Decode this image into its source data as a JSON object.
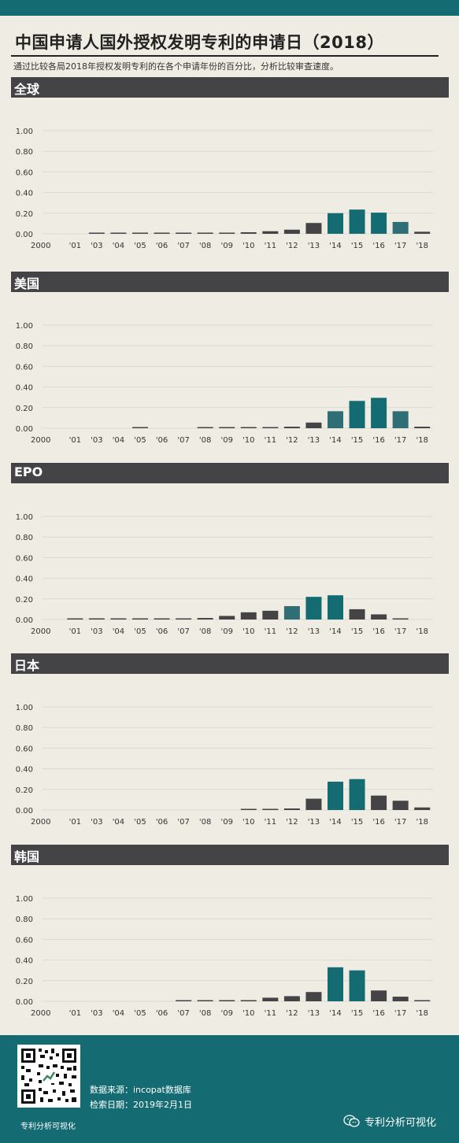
{
  "title": "中国申请人国外授权发明专利的申请日（2018）",
  "subtitle": "通过比较各局2018年授权发明专利的在各个申请年份的百分比，分析比较审查速度。",
  "colors": {
    "dark": "#444446",
    "teal": "#146c72",
    "teal_mid": "#2e6e74",
    "background": "#efede3"
  },
  "chart_data": [
    {
      "type": "bar",
      "title": "全球",
      "categories": [
        "2000",
        "'01",
        "'03",
        "'04",
        "'05",
        "'06",
        "'07",
        "'08",
        "'09",
        "'10",
        "'11",
        "'12",
        "'13",
        "'14",
        "'15",
        "'16",
        "'17",
        "'18"
      ],
      "values": [
        0.0,
        0.0,
        0.01,
        0.01,
        0.01,
        0.01,
        0.01,
        0.01,
        0.01,
        0.015,
        0.025,
        0.04,
        0.105,
        0.2,
        0.235,
        0.205,
        0.115,
        0.02
      ],
      "yticks": [
        "1.00",
        "0.80",
        "0.60",
        "0.40",
        "0.20",
        "0.00"
      ],
      "ylim": [
        0,
        1
      ]
    },
    {
      "type": "bar",
      "title": "美国",
      "categories": [
        "2000",
        "'01",
        "'03",
        "'04",
        "'05",
        "'06",
        "'07",
        "'08",
        "'09",
        "'10",
        "'11",
        "'12",
        "'13",
        "'14",
        "'15",
        "'16",
        "'17",
        "'18"
      ],
      "values": [
        0.0,
        0.0,
        0.0,
        0.0,
        0.005,
        0.0,
        0.0,
        0.005,
        0.005,
        0.005,
        0.005,
        0.015,
        0.055,
        0.165,
        0.265,
        0.295,
        0.165,
        0.015
      ],
      "yticks": [
        "1.00",
        "0.80",
        "0.60",
        "0.40",
        "0.20",
        "0.00"
      ],
      "ylim": [
        0,
        1
      ]
    },
    {
      "type": "bar",
      "title": "EPO",
      "categories": [
        "2000",
        "'01",
        "'03",
        "'04",
        "'05",
        "'06",
        "'07",
        "'08",
        "'09",
        "'10",
        "'11",
        "'12",
        "'13",
        "'14",
        "'15",
        "'16",
        "'17",
        "'18"
      ],
      "values": [
        0.0,
        0.003,
        0.003,
        0.003,
        0.003,
        0.003,
        0.01,
        0.015,
        0.035,
        0.07,
        0.085,
        0.13,
        0.22,
        0.235,
        0.1,
        0.05,
        0.01,
        0.0
      ],
      "yticks": [
        "1.00",
        "0.80",
        "0.60",
        "0.40",
        "0.20",
        "0.00"
      ],
      "ylim": [
        0,
        1
      ]
    },
    {
      "type": "bar",
      "title": "日本",
      "categories": [
        "2000",
        "'01",
        "'03",
        "'04",
        "'05",
        "'06",
        "'07",
        "'08",
        "'09",
        "'10",
        "'11",
        "'12",
        "'13",
        "'14",
        "'15",
        "'16",
        "'17",
        "'18"
      ],
      "values": [
        0.0,
        0.0,
        0.0,
        0.0,
        0.0,
        0.0,
        0.0,
        0.0,
        0.0,
        0.005,
        0.005,
        0.015,
        0.11,
        0.275,
        0.3,
        0.14,
        0.09,
        0.025
      ],
      "yticks": [
        "1.00",
        "0.80",
        "0.60",
        "0.40",
        "0.20",
        "0.00"
      ],
      "ylim": [
        0,
        1
      ]
    },
    {
      "type": "bar",
      "title": "韩国",
      "categories": [
        "2000",
        "'01",
        "'03",
        "'04",
        "'05",
        "'06",
        "'07",
        "'08",
        "'09",
        "'10",
        "'11",
        "'12",
        "'13",
        "'14",
        "'15",
        "'16",
        "'17",
        "'18"
      ],
      "values": [
        0.0,
        0.0,
        0.0,
        0.0,
        0.0,
        0.0,
        0.005,
        0.005,
        0.005,
        0.005,
        0.035,
        0.05,
        0.09,
        0.33,
        0.3,
        0.105,
        0.045,
        0.01
      ],
      "yticks": [
        "1.00",
        "0.80",
        "0.60",
        "0.40",
        "0.20",
        "0.00"
      ],
      "ylim": [
        0,
        1
      ]
    }
  ],
  "footer": {
    "source": "数据来源：incopat数据库",
    "date": "检索日期：2019年2月1日",
    "account_left": "专利分析可视化",
    "brand": "专利分析可视化"
  }
}
